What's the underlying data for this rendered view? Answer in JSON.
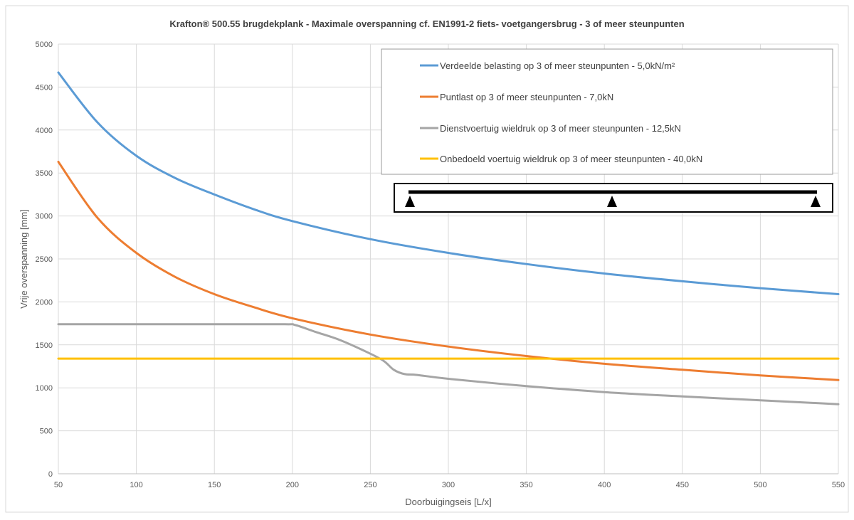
{
  "chart_data": {
    "type": "line",
    "title": "Krafton® 500.55 brugdekplank - Maximale overspanning cf. EN1991-2 fiets- voetgangersbrug - 3 of meer steunpunten",
    "xlabel": "Doorbuigingseis [L/x]",
    "ylabel": "Vrije overspanning [mm]",
    "xlim": [
      50,
      550
    ],
    "ylim": [
      0,
      5000
    ],
    "x_ticks": [
      50,
      100,
      150,
      200,
      250,
      300,
      350,
      400,
      450,
      500,
      550
    ],
    "y_ticks": [
      0,
      500,
      1000,
      1500,
      2000,
      2500,
      3000,
      3500,
      4000,
      4500,
      5000
    ],
    "grid": true,
    "legend_position": "top-right",
    "series": [
      {
        "name": "Verdeelde belasting op 3 of meer steunpunten - 5,0kN/m²",
        "color": "#5b9bd5",
        "points": [
          [
            50,
            4670
          ],
          [
            75,
            4090
          ],
          [
            100,
            3700
          ],
          [
            125,
            3440
          ],
          [
            150,
            3250
          ],
          [
            175,
            3080
          ],
          [
            200,
            2940
          ],
          [
            250,
            2730
          ],
          [
            300,
            2570
          ],
          [
            350,
            2440
          ],
          [
            400,
            2330
          ],
          [
            450,
            2240
          ],
          [
            500,
            2160
          ],
          [
            550,
            2090
          ]
        ]
      },
      {
        "name": "Puntlast op 3 of meer steunpunten  - 7,0kN",
        "color": "#ed7d31",
        "points": [
          [
            50,
            3630
          ],
          [
            75,
            2980
          ],
          [
            100,
            2570
          ],
          [
            125,
            2290
          ],
          [
            150,
            2090
          ],
          [
            175,
            1940
          ],
          [
            200,
            1810
          ],
          [
            250,
            1620
          ],
          [
            300,
            1480
          ],
          [
            350,
            1370
          ],
          [
            400,
            1280
          ],
          [
            450,
            1210
          ],
          [
            500,
            1145
          ],
          [
            550,
            1090
          ]
        ]
      },
      {
        "name": "Dienstvoertuig wieldruk op 3 of meer steunpunten - 12,5kN",
        "color": "#a5a5a5",
        "points": [
          [
            50,
            1740
          ],
          [
            100,
            1740
          ],
          [
            150,
            1740
          ],
          [
            195,
            1740
          ],
          [
            202,
            1730
          ],
          [
            215,
            1650
          ],
          [
            230,
            1560
          ],
          [
            245,
            1440
          ],
          [
            258,
            1320
          ],
          [
            265,
            1210
          ],
          [
            272,
            1160
          ],
          [
            280,
            1150
          ],
          [
            300,
            1105
          ],
          [
            350,
            1020
          ],
          [
            400,
            950
          ],
          [
            450,
            900
          ],
          [
            500,
            855
          ],
          [
            550,
            810
          ]
        ]
      },
      {
        "name": "Onbedoeld voertuig wieldruk op 3 of meer steunpunten - 40,0kN",
        "color": "#ffc000",
        "points": [
          [
            50,
            1340
          ],
          [
            550,
            1340
          ]
        ]
      }
    ]
  }
}
